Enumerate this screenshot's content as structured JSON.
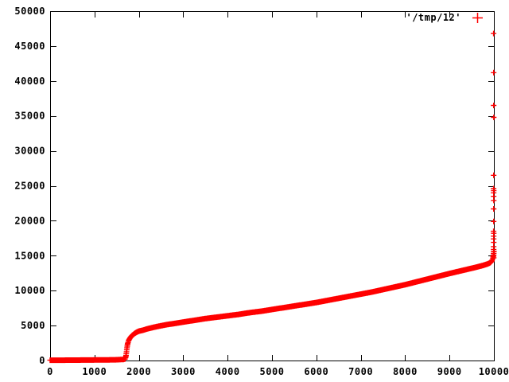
{
  "window": {
    "background": "#ffffff"
  },
  "chart": {
    "legend": {
      "label": "'/tmp/12'",
      "position": "top-right"
    },
    "series_color": "#ff0000",
    "axis_color": "#000000"
  },
  "chart_data": {
    "type": "scatter",
    "title": "",
    "xlabel": "",
    "ylabel": "",
    "grid": false,
    "marker": "plus",
    "legend_entries": [
      "'/tmp/12'"
    ],
    "series_color": "#ff0000",
    "xlim": [
      0,
      10000
    ],
    "ylim": [
      0,
      50000
    ],
    "xticks": [
      0,
      1000,
      2000,
      3000,
      4000,
      5000,
      6000,
      7000,
      8000,
      9000,
      10000
    ],
    "yticks": [
      0,
      5000,
      10000,
      15000,
      20000,
      25000,
      30000,
      35000,
      40000,
      45000,
      50000
    ],
    "sorted_curve": [
      [
        0,
        40
      ],
      [
        300,
        50
      ],
      [
        600,
        60
      ],
      [
        900,
        70
      ],
      [
        1200,
        85
      ],
      [
        1500,
        110
      ],
      [
        1650,
        150
      ],
      [
        1690,
        220
      ],
      [
        1705,
        500
      ],
      [
        1715,
        900
      ],
      [
        1725,
        1400
      ],
      [
        1735,
        1900
      ],
      [
        1745,
        2300
      ],
      [
        1760,
        2700
      ],
      [
        1780,
        3000
      ],
      [
        1810,
        3300
      ],
      [
        1850,
        3600
      ],
      [
        1900,
        3850
      ],
      [
        1950,
        4050
      ],
      [
        2000,
        4200
      ],
      [
        2100,
        4350
      ],
      [
        2200,
        4550
      ],
      [
        2400,
        4850
      ],
      [
        2600,
        5100
      ],
      [
        2800,
        5300
      ],
      [
        3000,
        5500
      ],
      [
        3250,
        5750
      ],
      [
        3500,
        6000
      ],
      [
        3750,
        6200
      ],
      [
        4000,
        6400
      ],
      [
        4250,
        6600
      ],
      [
        4500,
        6850
      ],
      [
        4750,
        7050
      ],
      [
        5000,
        7300
      ],
      [
        5250,
        7550
      ],
      [
        5500,
        7800
      ],
      [
        5750,
        8050
      ],
      [
        6000,
        8300
      ],
      [
        6250,
        8600
      ],
      [
        6500,
        8900
      ],
      [
        6750,
        9200
      ],
      [
        7000,
        9500
      ],
      [
        7250,
        9800
      ],
      [
        7500,
        10150
      ],
      [
        7750,
        10500
      ],
      [
        8000,
        10850
      ],
      [
        8250,
        11250
      ],
      [
        8500,
        11650
      ],
      [
        8750,
        12050
      ],
      [
        9000,
        12450
      ],
      [
        9200,
        12750
      ],
      [
        9400,
        13050
      ],
      [
        9600,
        13350
      ],
      [
        9750,
        13600
      ],
      [
        9850,
        13800
      ],
      [
        9920,
        14000
      ],
      [
        9960,
        14300
      ],
      [
        9980,
        14700
      ],
      [
        9995,
        15300
      ],
      [
        10000,
        15600
      ]
    ],
    "outliers": [
      [
        9993,
        46800
      ],
      [
        9995,
        41200
      ],
      [
        9994,
        36500
      ],
      [
        9996,
        34800
      ],
      [
        9995,
        26500
      ],
      [
        9993,
        24600
      ],
      [
        9996,
        24300
      ],
      [
        9994,
        24000
      ],
      [
        9995,
        23500
      ],
      [
        9997,
        22900
      ],
      [
        9994,
        21700
      ],
      [
        9995,
        19900
      ],
      [
        9993,
        18500
      ],
      [
        9996,
        18200
      ],
      [
        9994,
        17800
      ],
      [
        9995,
        17400
      ],
      [
        9996,
        16900
      ],
      [
        9994,
        16300
      ],
      [
        9995,
        15900
      ],
      [
        9996,
        15600
      ],
      [
        9994,
        15300
      ],
      [
        9995,
        15000
      ],
      [
        9996,
        14700
      ]
    ]
  }
}
